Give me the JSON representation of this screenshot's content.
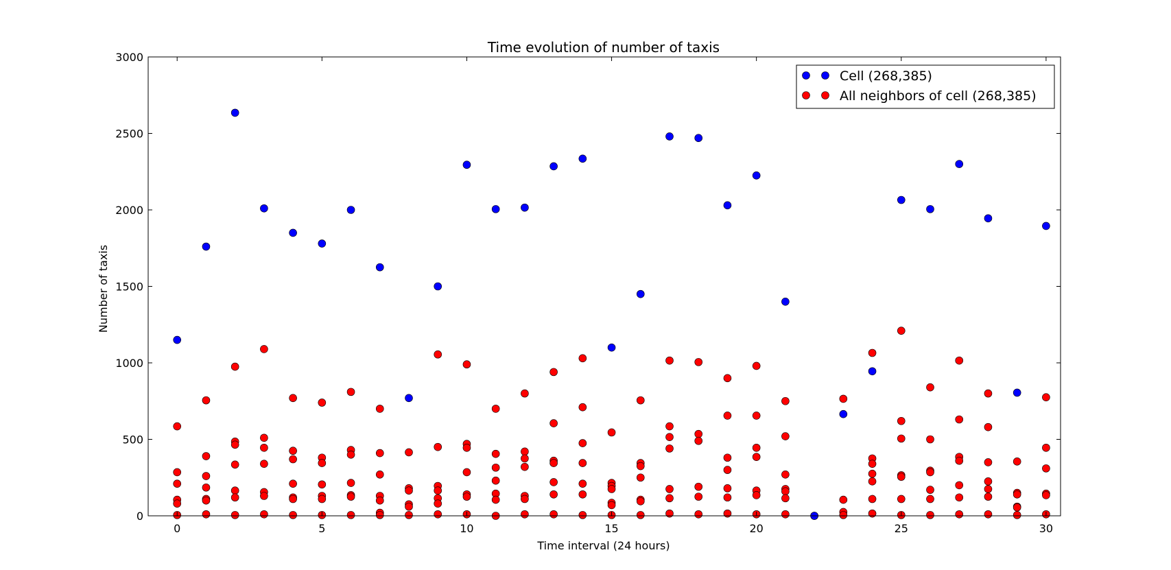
{
  "chart_data": {
    "type": "scatter",
    "title": "Time evolution of number of taxis",
    "xlabel": "Time interval (24 hours)",
    "ylabel": "Number of taxis",
    "xlim": [
      -1,
      30.5
    ],
    "ylim": [
      0,
      3000
    ],
    "xticks": [
      0,
      5,
      10,
      15,
      20,
      25,
      30
    ],
    "yticks": [
      0,
      500,
      1000,
      1500,
      2000,
      2500,
      3000
    ],
    "grid": false,
    "legend_position": "top-right",
    "series": [
      {
        "name": "Cell (268,385)",
        "color": "#0000ff",
        "points": [
          [
            0,
            1150
          ],
          [
            1,
            1760
          ],
          [
            2,
            2635
          ],
          [
            3,
            2010
          ],
          [
            4,
            1850
          ],
          [
            5,
            1780
          ],
          [
            6,
            2000
          ],
          [
            7,
            1625
          ],
          [
            8,
            770
          ],
          [
            9,
            1500
          ],
          [
            10,
            2295
          ],
          [
            11,
            2005
          ],
          [
            12,
            2015
          ],
          [
            13,
            2285
          ],
          [
            14,
            2335
          ],
          [
            15,
            1100
          ],
          [
            16,
            1450
          ],
          [
            17,
            2480
          ],
          [
            18,
            2470
          ],
          [
            19,
            2030
          ],
          [
            20,
            2225
          ],
          [
            21,
            1400
          ],
          [
            22,
            0
          ],
          [
            23,
            665
          ],
          [
            24,
            945
          ],
          [
            25,
            2065
          ],
          [
            26,
            2005
          ],
          [
            27,
            2300
          ],
          [
            28,
            1945
          ],
          [
            29,
            805
          ],
          [
            30,
            1895
          ]
        ]
      },
      {
        "name": "All neighbors of cell (268,385)",
        "color": "#ff0000",
        "points": [
          [
            0,
            585
          ],
          [
            0,
            285
          ],
          [
            0,
            210
          ],
          [
            0,
            105
          ],
          [
            0,
            80
          ],
          [
            0,
            5
          ],
          [
            1,
            755
          ],
          [
            1,
            390
          ],
          [
            1,
            260
          ],
          [
            1,
            185
          ],
          [
            1,
            110
          ],
          [
            1,
            100
          ],
          [
            1,
            10
          ],
          [
            2,
            975
          ],
          [
            2,
            485
          ],
          [
            2,
            465
          ],
          [
            2,
            335
          ],
          [
            2,
            165
          ],
          [
            2,
            120
          ],
          [
            2,
            5
          ],
          [
            3,
            1090
          ],
          [
            3,
            510
          ],
          [
            3,
            445
          ],
          [
            3,
            340
          ],
          [
            3,
            155
          ],
          [
            3,
            130
          ],
          [
            3,
            10
          ],
          [
            4,
            770
          ],
          [
            4,
            425
          ],
          [
            4,
            370
          ],
          [
            4,
            210
          ],
          [
            4,
            120
          ],
          [
            4,
            110
          ],
          [
            4,
            5
          ],
          [
            5,
            740
          ],
          [
            5,
            380
          ],
          [
            5,
            345
          ],
          [
            5,
            205
          ],
          [
            5,
            130
          ],
          [
            5,
            110
          ],
          [
            5,
            5
          ],
          [
            6,
            810
          ],
          [
            6,
            430
          ],
          [
            6,
            400
          ],
          [
            6,
            215
          ],
          [
            6,
            135
          ],
          [
            6,
            125
          ],
          [
            6,
            5
          ],
          [
            7,
            700
          ],
          [
            7,
            410
          ],
          [
            7,
            270
          ],
          [
            7,
            130
          ],
          [
            7,
            100
          ],
          [
            7,
            20
          ],
          [
            7,
            5
          ],
          [
            8,
            415
          ],
          [
            8,
            180
          ],
          [
            8,
            165
          ],
          [
            8,
            75
          ],
          [
            8,
            60
          ],
          [
            8,
            5
          ],
          [
            9,
            1055
          ],
          [
            9,
            450
          ],
          [
            9,
            195
          ],
          [
            9,
            165
          ],
          [
            9,
            115
          ],
          [
            9,
            80
          ],
          [
            9,
            10
          ],
          [
            10,
            990
          ],
          [
            10,
            470
          ],
          [
            10,
            445
          ],
          [
            10,
            285
          ],
          [
            10,
            140
          ],
          [
            10,
            125
          ],
          [
            10,
            10
          ],
          [
            11,
            700
          ],
          [
            11,
            405
          ],
          [
            11,
            315
          ],
          [
            11,
            230
          ],
          [
            11,
            145
          ],
          [
            11,
            105
          ],
          [
            11,
            0
          ],
          [
            12,
            800
          ],
          [
            12,
            420
          ],
          [
            12,
            375
          ],
          [
            12,
            320
          ],
          [
            12,
            130
          ],
          [
            12,
            110
          ],
          [
            12,
            10
          ],
          [
            13,
            940
          ],
          [
            13,
            605
          ],
          [
            13,
            360
          ],
          [
            13,
            345
          ],
          [
            13,
            220
          ],
          [
            13,
            140
          ],
          [
            13,
            10
          ],
          [
            14,
            1030
          ],
          [
            14,
            710
          ],
          [
            14,
            475
          ],
          [
            14,
            345
          ],
          [
            14,
            210
          ],
          [
            14,
            140
          ],
          [
            14,
            5
          ],
          [
            15,
            545
          ],
          [
            15,
            215
          ],
          [
            15,
            195
          ],
          [
            15,
            175
          ],
          [
            15,
            85
          ],
          [
            15,
            70
          ],
          [
            15,
            5
          ],
          [
            16,
            755
          ],
          [
            16,
            345
          ],
          [
            16,
            325
          ],
          [
            16,
            250
          ],
          [
            16,
            105
          ],
          [
            16,
            95
          ],
          [
            16,
            5
          ],
          [
            17,
            1015
          ],
          [
            17,
            585
          ],
          [
            17,
            515
          ],
          [
            17,
            440
          ],
          [
            17,
            175
          ],
          [
            17,
            115
          ],
          [
            17,
            15
          ],
          [
            18,
            1005
          ],
          [
            18,
            535
          ],
          [
            18,
            490
          ],
          [
            18,
            190
          ],
          [
            18,
            125
          ],
          [
            18,
            10
          ],
          [
            19,
            900
          ],
          [
            19,
            655
          ],
          [
            19,
            380
          ],
          [
            19,
            300
          ],
          [
            19,
            180
          ],
          [
            19,
            120
          ],
          [
            19,
            15
          ],
          [
            20,
            980
          ],
          [
            20,
            655
          ],
          [
            20,
            445
          ],
          [
            20,
            385
          ],
          [
            20,
            165
          ],
          [
            20,
            135
          ],
          [
            20,
            10
          ],
          [
            21,
            750
          ],
          [
            21,
            520
          ],
          [
            21,
            270
          ],
          [
            21,
            175
          ],
          [
            21,
            160
          ],
          [
            21,
            115
          ],
          [
            21,
            10
          ],
          [
            22,
            0
          ],
          [
            23,
            765
          ],
          [
            23,
            105
          ],
          [
            23,
            25
          ],
          [
            23,
            5
          ],
          [
            24,
            1065
          ],
          [
            24,
            375
          ],
          [
            24,
            340
          ],
          [
            24,
            275
          ],
          [
            24,
            225
          ],
          [
            24,
            110
          ],
          [
            24,
            15
          ],
          [
            25,
            1210
          ],
          [
            25,
            620
          ],
          [
            25,
            505
          ],
          [
            25,
            265
          ],
          [
            25,
            255
          ],
          [
            25,
            110
          ],
          [
            25,
            5
          ],
          [
            26,
            840
          ],
          [
            26,
            500
          ],
          [
            26,
            295
          ],
          [
            26,
            285
          ],
          [
            26,
            170
          ],
          [
            26,
            110
          ],
          [
            26,
            5
          ],
          [
            27,
            1015
          ],
          [
            27,
            630
          ],
          [
            27,
            385
          ],
          [
            27,
            360
          ],
          [
            27,
            200
          ],
          [
            27,
            120
          ],
          [
            27,
            10
          ],
          [
            28,
            800
          ],
          [
            28,
            580
          ],
          [
            28,
            350
          ],
          [
            28,
            225
          ],
          [
            28,
            175
          ],
          [
            28,
            125
          ],
          [
            28,
            10
          ],
          [
            29,
            355
          ],
          [
            29,
            150
          ],
          [
            29,
            140
          ],
          [
            29,
            60
          ],
          [
            29,
            55
          ],
          [
            29,
            5
          ],
          [
            30,
            775
          ],
          [
            30,
            445
          ],
          [
            30,
            310
          ],
          [
            30,
            145
          ],
          [
            30,
            135
          ],
          [
            30,
            10
          ]
        ]
      }
    ]
  }
}
